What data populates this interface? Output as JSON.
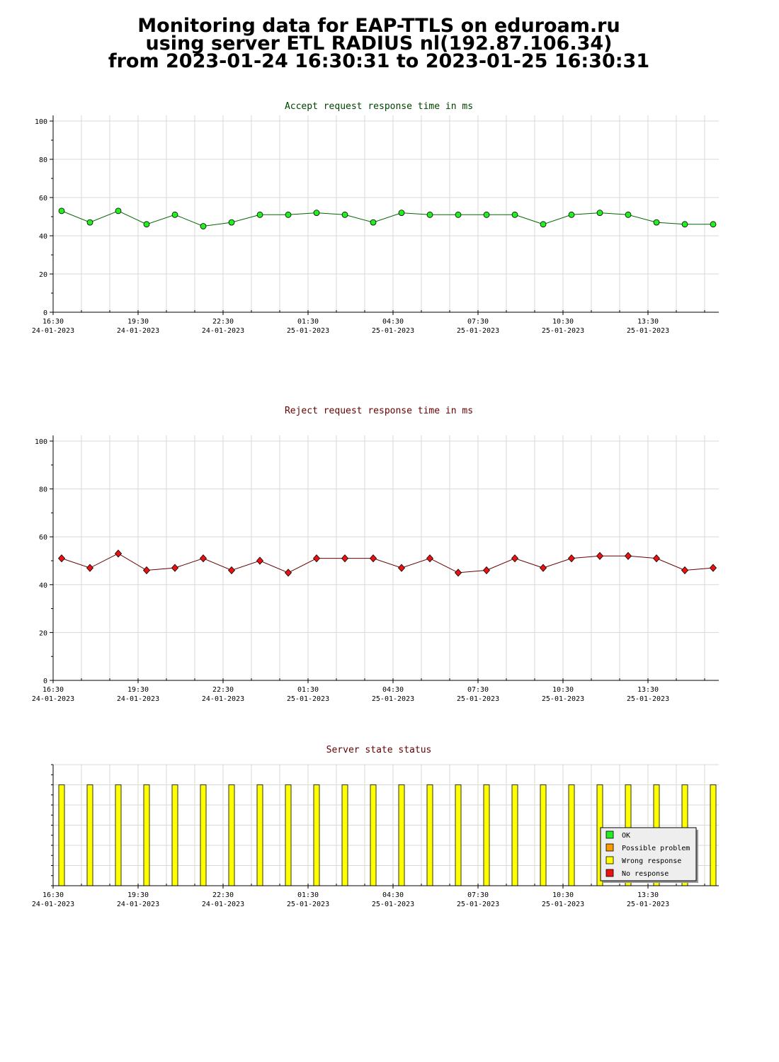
{
  "header": {
    "line1": "Monitoring data for EAP-TTLS on eduroam.ru",
    "line2": "using server ETL RADIUS nl(192.87.106.34)",
    "line3": "from 2023-01-24 16:30:31 to 2023-01-25 16:30:31"
  },
  "colors": {
    "accept_title": "#004400",
    "reject_title": "#660000",
    "state_title": "#660000",
    "accept_line": "#006600",
    "accept_marker": "#22ee22",
    "reject_line": "#660000",
    "reject_marker": "#ee1111",
    "grid": "#d8d8d8",
    "ok": "#22ee22",
    "possible_problem": "#ff9900",
    "wrong_response": "#ffff00",
    "no_response": "#ee1111"
  },
  "chart_data": [
    {
      "type": "line",
      "title": "Accept request response time in ms",
      "x_tick_labels": [
        {
          "time": "16:30",
          "date": "24-01-2023"
        },
        {
          "time": "19:30",
          "date": "24-01-2023"
        },
        {
          "time": "22:30",
          "date": "24-01-2023"
        },
        {
          "time": "01:30",
          "date": "25-01-2023"
        },
        {
          "time": "04:30",
          "date": "25-01-2023"
        },
        {
          "time": "07:30",
          "date": "25-01-2023"
        },
        {
          "time": "10:30",
          "date": "25-01-2023"
        },
        {
          "time": "13:30",
          "date": "25-01-2023"
        }
      ],
      "y_ticks": [
        0,
        20,
        40,
        60,
        80,
        100
      ],
      "ylim": [
        0,
        100
      ],
      "grid": true,
      "x_hours": [
        0.3,
        1.3,
        2.3,
        3.3,
        4.3,
        5.3,
        6.3,
        7.3,
        8.3,
        9.3,
        10.3,
        11.3,
        12.3,
        13.3,
        14.3,
        15.3,
        16.3,
        17.3,
        18.3,
        19.3,
        20.3,
        21.3,
        22.3,
        23.3
      ],
      "values": [
        53,
        47,
        53,
        46,
        51,
        45,
        47,
        51,
        51,
        52,
        51,
        47,
        52,
        51,
        51,
        51,
        51,
        46,
        51,
        52,
        51,
        47,
        46,
        46
      ]
    },
    {
      "type": "line",
      "title": "Reject request response time in ms",
      "x_tick_labels": [
        {
          "time": "16:30",
          "date": "24-01-2023"
        },
        {
          "time": "19:30",
          "date": "24-01-2023"
        },
        {
          "time": "22:30",
          "date": "24-01-2023"
        },
        {
          "time": "01:30",
          "date": "25-01-2023"
        },
        {
          "time": "04:30",
          "date": "25-01-2023"
        },
        {
          "time": "07:30",
          "date": "25-01-2023"
        },
        {
          "time": "10:30",
          "date": "25-01-2023"
        },
        {
          "time": "13:30",
          "date": "25-01-2023"
        }
      ],
      "y_ticks": [
        0,
        20,
        40,
        60,
        80,
        100
      ],
      "ylim": [
        0,
        100
      ],
      "grid": true,
      "x_hours": [
        0.3,
        1.3,
        2.3,
        3.3,
        4.3,
        5.3,
        6.3,
        7.3,
        8.3,
        9.3,
        10.3,
        11.3,
        12.3,
        13.3,
        14.3,
        15.3,
        16.3,
        17.3,
        18.3,
        19.3,
        20.3,
        21.3,
        22.3,
        23.3
      ],
      "values": [
        51,
        47,
        53,
        46,
        47,
        51,
        46,
        50,
        45,
        51,
        51,
        51,
        47,
        51,
        45,
        46,
        51,
        47,
        51,
        52,
        52,
        51,
        46,
        47
      ]
    },
    {
      "type": "bar",
      "title": "Server state status",
      "x_tick_labels": [
        {
          "time": "16:30",
          "date": "24-01-2023"
        },
        {
          "time": "19:30",
          "date": "24-01-2023"
        },
        {
          "time": "22:30",
          "date": "24-01-2023"
        },
        {
          "time": "01:30",
          "date": "25-01-2023"
        },
        {
          "time": "04:30",
          "date": "25-01-2023"
        },
        {
          "time": "07:30",
          "date": "25-01-2023"
        },
        {
          "time": "10:30",
          "date": "25-01-2023"
        },
        {
          "time": "13:30",
          "date": "25-01-2023"
        }
      ],
      "x_hours": [
        0.3,
        1.3,
        2.3,
        3.3,
        4.3,
        5.3,
        6.3,
        7.3,
        8.3,
        9.3,
        10.3,
        11.3,
        12.3,
        13.3,
        14.3,
        15.3,
        16.3,
        17.3,
        18.3,
        19.3,
        20.3,
        21.3,
        22.3,
        23.3
      ],
      "states": [
        "wrong_response",
        "wrong_response",
        "wrong_response",
        "wrong_response",
        "wrong_response",
        "wrong_response",
        "wrong_response",
        "wrong_response",
        "wrong_response",
        "wrong_response",
        "wrong_response",
        "wrong_response",
        "wrong_response",
        "wrong_response",
        "wrong_response",
        "wrong_response",
        "wrong_response",
        "wrong_response",
        "wrong_response",
        "wrong_response",
        "wrong_response",
        "wrong_response",
        "wrong_response",
        "wrong_response"
      ],
      "legend_position": "bottom-right",
      "legend": [
        {
          "key": "ok",
          "label": "OK"
        },
        {
          "key": "possible_problem",
          "label": "Possible problem"
        },
        {
          "key": "wrong_response",
          "label": "Wrong response"
        },
        {
          "key": "no_response",
          "label": "No response"
        }
      ]
    }
  ]
}
